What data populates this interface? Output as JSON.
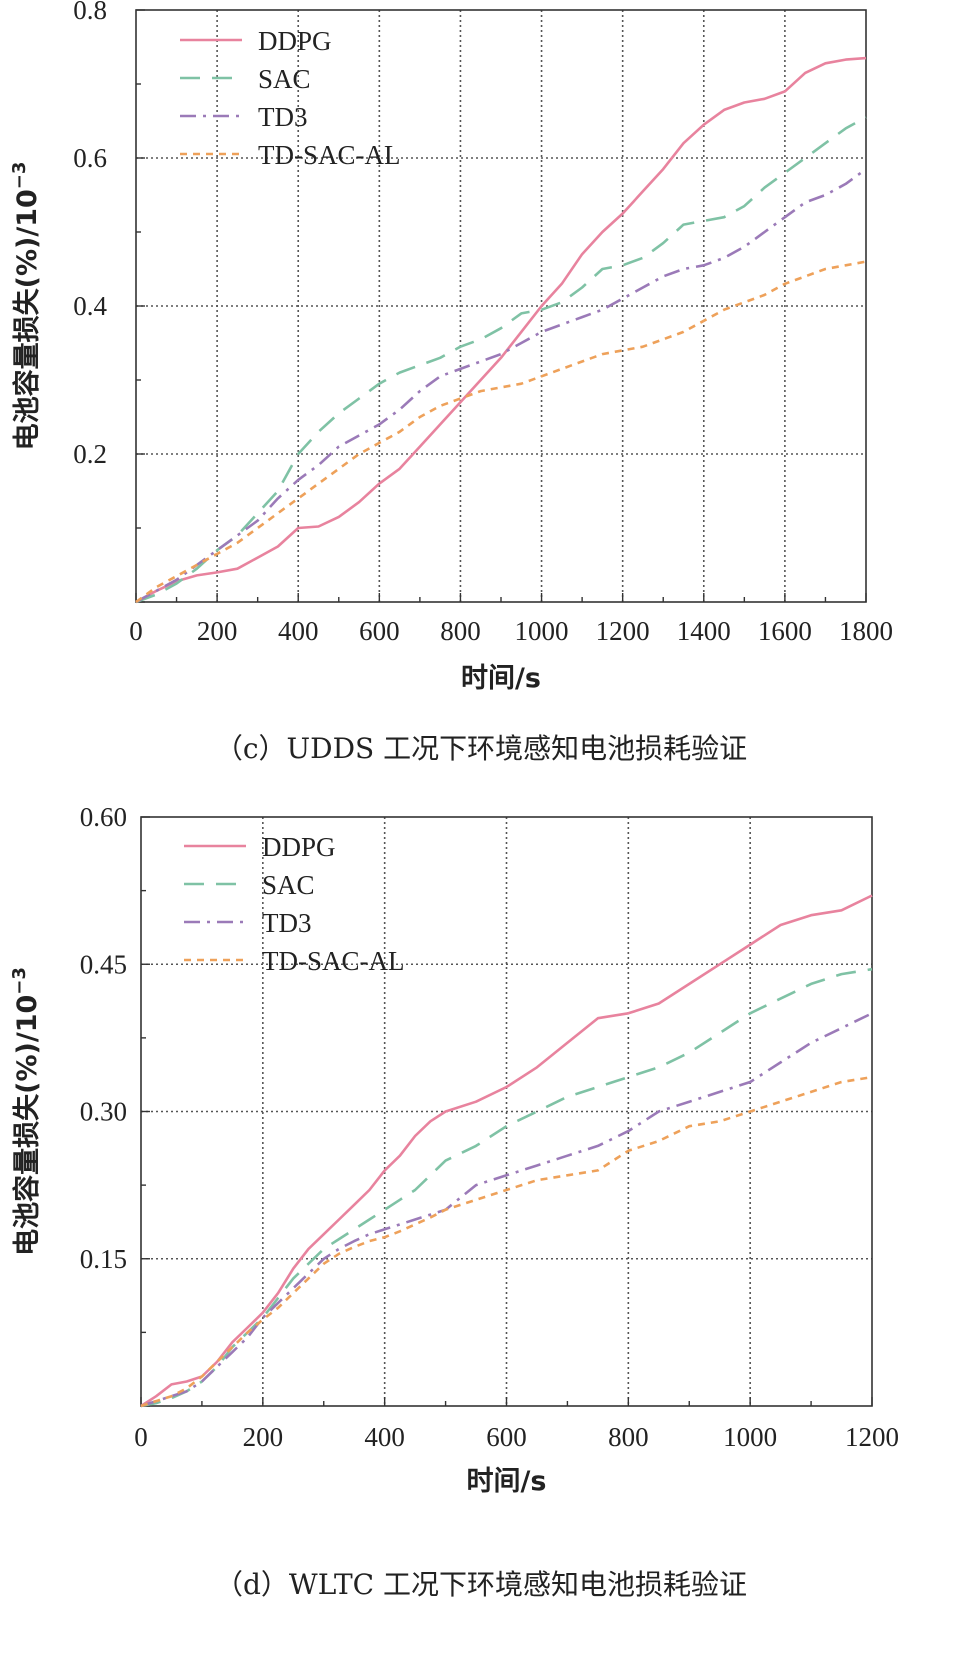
{
  "chart_data": [
    {
      "type": "line",
      "caption": "（c）UDDS 工况下环境感知电池损耗验证",
      "xlabel": "时间/s",
      "ylabel": "电池容量损失(%)/10",
      "ylabel_exp": "−3",
      "xlim": [
        0,
        1800
      ],
      "ylim": [
        0,
        0.8
      ],
      "xticks": [
        0,
        200,
        400,
        600,
        800,
        1000,
        1200,
        1400,
        1600,
        1800
      ],
      "xtick_labels": [
        "0",
        "200",
        "400",
        "600",
        "800",
        "1000",
        "1200",
        "1400",
        "1600",
        "1800"
      ],
      "yticks": [
        0.2,
        0.4,
        0.6,
        0.8
      ],
      "ytick_labels": [
        "0.2",
        "0.4",
        "0.6",
        "0.8"
      ],
      "grid": true,
      "legend_position": "top-left",
      "series": [
        {
          "name": "DDPG",
          "color": "#e8839e",
          "dash": "solid",
          "x": [
            0,
            50,
            100,
            150,
            200,
            250,
            300,
            350,
            400,
            450,
            500,
            550,
            600,
            650,
            700,
            750,
            800,
            850,
            900,
            950,
            1000,
            1050,
            1100,
            1150,
            1200,
            1250,
            1300,
            1350,
            1400,
            1450,
            1500,
            1550,
            1600,
            1650,
            1700,
            1750,
            1800
          ],
          "y": [
            0,
            0.015,
            0.028,
            0.036,
            0.04,
            0.045,
            0.06,
            0.075,
            0.1,
            0.102,
            0.115,
            0.135,
            0.16,
            0.18,
            0.21,
            0.24,
            0.27,
            0.3,
            0.33,
            0.365,
            0.4,
            0.43,
            0.47,
            0.5,
            0.525,
            0.555,
            0.585,
            0.62,
            0.645,
            0.665,
            0.675,
            0.68,
            0.69,
            0.715,
            0.728,
            0.733,
            0.735
          ]
        },
        {
          "name": "SAC",
          "color": "#7fc2a5",
          "dash": "long",
          "x": [
            0,
            50,
            100,
            150,
            200,
            250,
            300,
            350,
            400,
            450,
            500,
            550,
            600,
            650,
            700,
            750,
            800,
            850,
            900,
            950,
            1000,
            1050,
            1100,
            1150,
            1200,
            1250,
            1300,
            1350,
            1400,
            1450,
            1500,
            1550,
            1600,
            1650,
            1700,
            1750,
            1800
          ],
          "y": [
            0,
            0.01,
            0.025,
            0.045,
            0.07,
            0.09,
            0.12,
            0.15,
            0.2,
            0.23,
            0.255,
            0.275,
            0.295,
            0.31,
            0.32,
            0.33,
            0.345,
            0.355,
            0.37,
            0.39,
            0.395,
            0.405,
            0.425,
            0.45,
            0.455,
            0.465,
            0.485,
            0.51,
            0.515,
            0.52,
            0.535,
            0.56,
            0.58,
            0.6,
            0.62,
            0.64,
            0.655
          ]
        },
        {
          "name": "TD3",
          "color": "#9b7ab8",
          "dash": "dashdot",
          "x": [
            0,
            50,
            100,
            150,
            200,
            250,
            300,
            350,
            400,
            450,
            500,
            550,
            600,
            650,
            700,
            750,
            800,
            850,
            900,
            950,
            1000,
            1050,
            1100,
            1150,
            1200,
            1250,
            1300,
            1350,
            1400,
            1450,
            1500,
            1550,
            1600,
            1650,
            1700,
            1750,
            1800
          ],
          "y": [
            0,
            0.015,
            0.03,
            0.05,
            0.07,
            0.09,
            0.11,
            0.14,
            0.165,
            0.185,
            0.21,
            0.225,
            0.24,
            0.26,
            0.285,
            0.305,
            0.315,
            0.325,
            0.335,
            0.35,
            0.365,
            0.375,
            0.385,
            0.395,
            0.41,
            0.425,
            0.44,
            0.45,
            0.455,
            0.465,
            0.48,
            0.5,
            0.52,
            0.54,
            0.55,
            0.565,
            0.585
          ]
        },
        {
          "name": "TD-SAC-AL",
          "color": "#eea15a",
          "dash": "short",
          "x": [
            0,
            50,
            100,
            150,
            200,
            250,
            300,
            350,
            400,
            450,
            500,
            550,
            600,
            650,
            700,
            750,
            800,
            850,
            900,
            950,
            1000,
            1050,
            1100,
            1150,
            1200,
            1250,
            1300,
            1350,
            1400,
            1450,
            1500,
            1550,
            1600,
            1650,
            1700,
            1750,
            1800
          ],
          "y": [
            0,
            0.02,
            0.035,
            0.05,
            0.065,
            0.08,
            0.1,
            0.12,
            0.14,
            0.16,
            0.18,
            0.2,
            0.215,
            0.23,
            0.25,
            0.265,
            0.275,
            0.285,
            0.29,
            0.295,
            0.305,
            0.315,
            0.325,
            0.335,
            0.34,
            0.345,
            0.355,
            0.365,
            0.38,
            0.395,
            0.405,
            0.415,
            0.43,
            0.44,
            0.45,
            0.455,
            0.46
          ]
        }
      ]
    },
    {
      "type": "line",
      "caption": "（d）WLTC 工况下环境感知电池损耗验证",
      "xlabel": "时间/s",
      "ylabel": "电池容量损失(%)/10",
      "ylabel_exp": "−3",
      "xlim": [
        0,
        1200
      ],
      "ylim": [
        0,
        0.6
      ],
      "xticks": [
        0,
        200,
        400,
        600,
        800,
        1000,
        1200
      ],
      "xtick_labels": [
        "0",
        "200",
        "400",
        "600",
        "800",
        "1000",
        "1200"
      ],
      "yticks": [
        0.15,
        0.3,
        0.45,
        0.6
      ],
      "ytick_labels": [
        "0.15",
        "0.30",
        "0.45",
        "0.60"
      ],
      "grid": true,
      "legend_position": "top-left",
      "series": [
        {
          "name": "DDPG",
          "color": "#e8839e",
          "dash": "solid",
          "x": [
            0,
            25,
            50,
            75,
            100,
            125,
            150,
            175,
            200,
            225,
            250,
            275,
            300,
            325,
            350,
            375,
            400,
            425,
            450,
            475,
            500,
            550,
            600,
            650,
            700,
            750,
            800,
            850,
            900,
            950,
            1000,
            1050,
            1100,
            1150,
            1200
          ],
          "y": [
            0,
            0.01,
            0.022,
            0.025,
            0.03,
            0.045,
            0.065,
            0.08,
            0.095,
            0.115,
            0.14,
            0.16,
            0.175,
            0.19,
            0.205,
            0.22,
            0.24,
            0.255,
            0.275,
            0.29,
            0.3,
            0.31,
            0.325,
            0.345,
            0.37,
            0.395,
            0.4,
            0.41,
            0.43,
            0.45,
            0.47,
            0.49,
            0.5,
            0.505,
            0.52
          ]
        },
        {
          "name": "SAC",
          "color": "#7fc2a5",
          "dash": "long",
          "x": [
            0,
            25,
            50,
            75,
            100,
            125,
            150,
            175,
            200,
            225,
            250,
            275,
            300,
            325,
            350,
            375,
            400,
            425,
            450,
            475,
            500,
            550,
            600,
            650,
            700,
            750,
            800,
            850,
            900,
            950,
            1000,
            1050,
            1100,
            1150,
            1200
          ],
          "y": [
            0,
            0.003,
            0.008,
            0.015,
            0.025,
            0.04,
            0.06,
            0.075,
            0.09,
            0.11,
            0.13,
            0.145,
            0.16,
            0.17,
            0.18,
            0.19,
            0.2,
            0.21,
            0.22,
            0.235,
            0.25,
            0.265,
            0.285,
            0.3,
            0.315,
            0.325,
            0.335,
            0.345,
            0.36,
            0.38,
            0.4,
            0.415,
            0.43,
            0.44,
            0.445
          ]
        },
        {
          "name": "TD3",
          "color": "#9b7ab8",
          "dash": "dashdot",
          "x": [
            0,
            25,
            50,
            75,
            100,
            125,
            150,
            175,
            200,
            225,
            250,
            275,
            300,
            325,
            350,
            375,
            400,
            425,
            450,
            475,
            500,
            550,
            600,
            650,
            700,
            750,
            800,
            850,
            900,
            950,
            1000,
            1050,
            1100,
            1150,
            1200
          ],
          "y": [
            0,
            0.005,
            0.01,
            0.015,
            0.025,
            0.04,
            0.055,
            0.07,
            0.09,
            0.105,
            0.12,
            0.135,
            0.15,
            0.16,
            0.168,
            0.175,
            0.18,
            0.185,
            0.19,
            0.195,
            0.2,
            0.225,
            0.235,
            0.245,
            0.255,
            0.265,
            0.28,
            0.3,
            0.31,
            0.32,
            0.33,
            0.35,
            0.37,
            0.385,
            0.4
          ]
        },
        {
          "name": "TD-SAC-AL",
          "color": "#eea15a",
          "dash": "short",
          "x": [
            0,
            25,
            50,
            75,
            100,
            125,
            150,
            175,
            200,
            225,
            250,
            275,
            300,
            325,
            350,
            375,
            400,
            425,
            450,
            475,
            500,
            550,
            600,
            650,
            700,
            750,
            800,
            850,
            900,
            950,
            1000,
            1050,
            1100,
            1150,
            1200
          ],
          "y": [
            0,
            0.005,
            0.01,
            0.018,
            0.03,
            0.045,
            0.06,
            0.075,
            0.088,
            0.1,
            0.115,
            0.13,
            0.145,
            0.155,
            0.162,
            0.168,
            0.172,
            0.178,
            0.185,
            0.192,
            0.2,
            0.21,
            0.22,
            0.23,
            0.235,
            0.24,
            0.26,
            0.27,
            0.285,
            0.29,
            0.3,
            0.31,
            0.32,
            0.33,
            0.335
          ]
        }
      ]
    }
  ]
}
